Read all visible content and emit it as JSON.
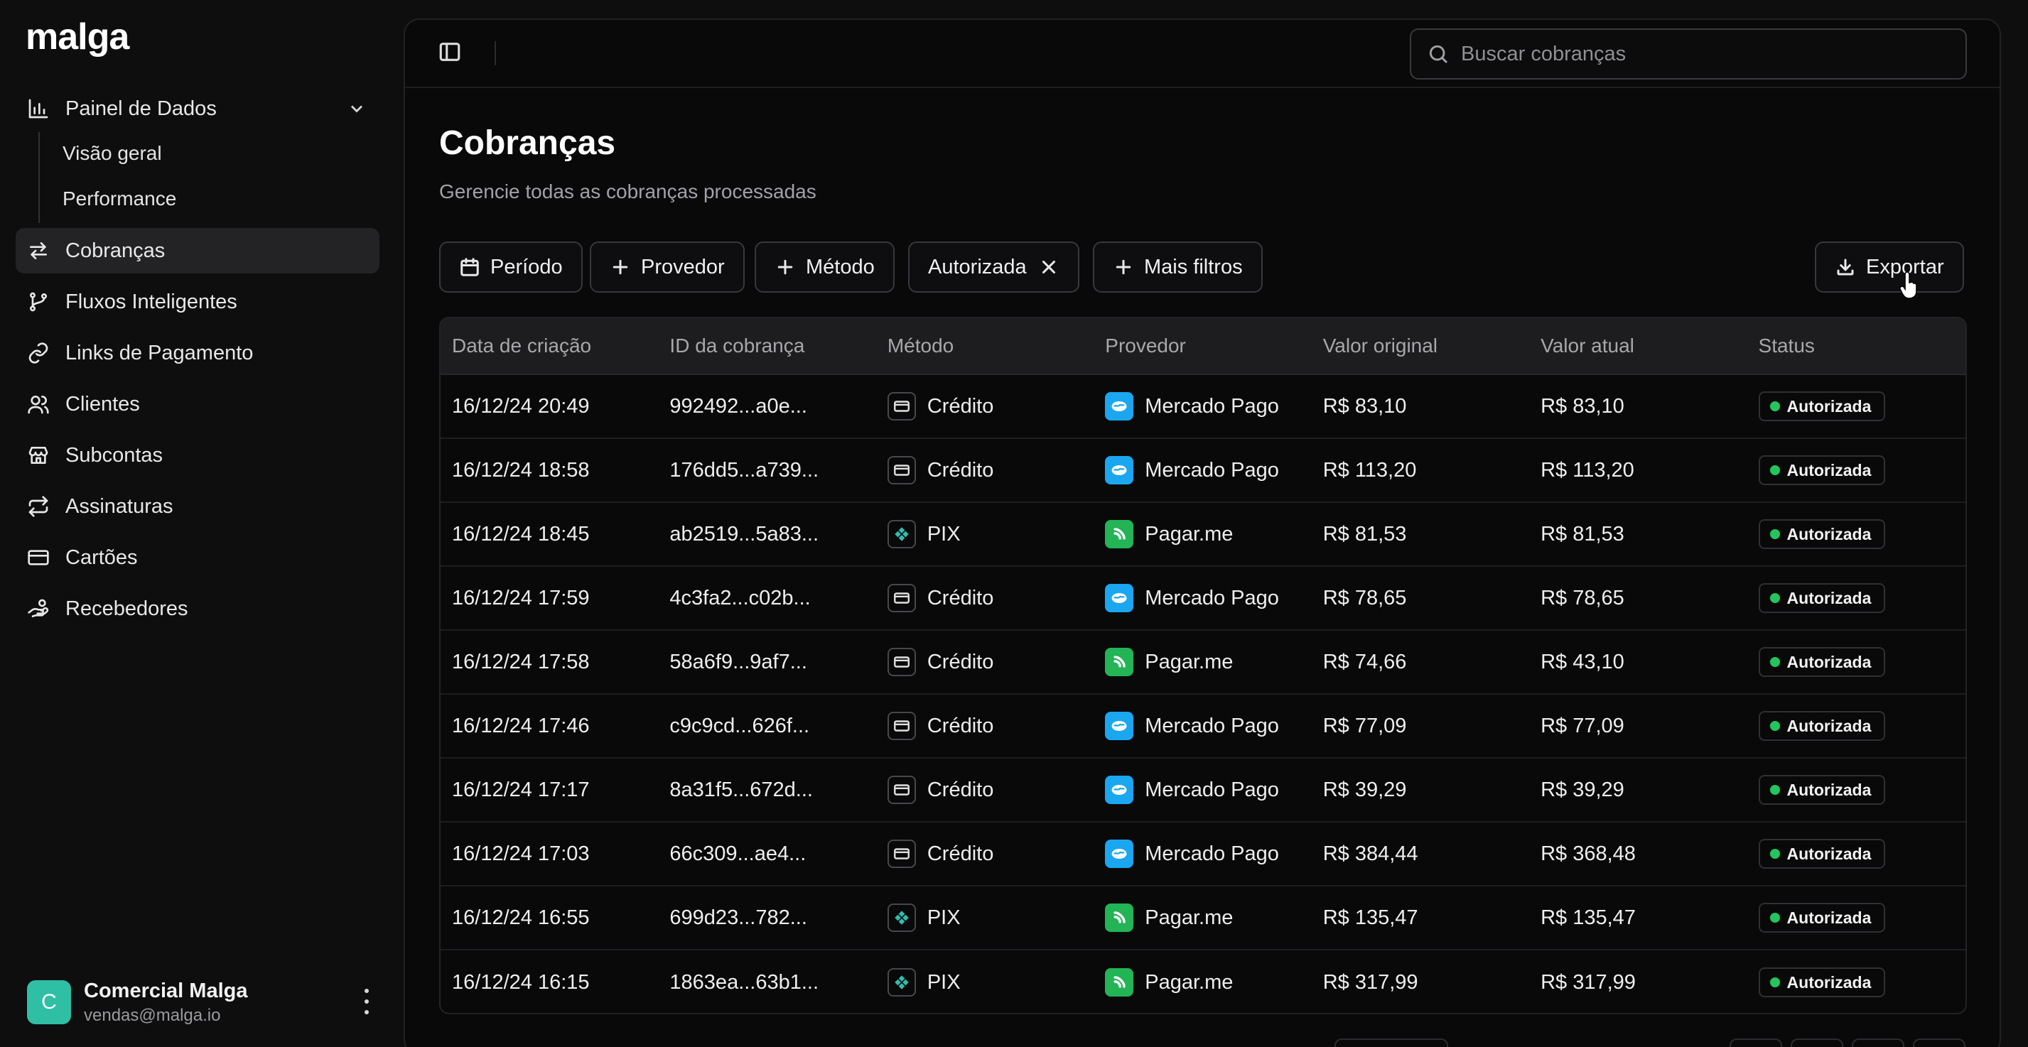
{
  "app": {
    "logo": "malga"
  },
  "sidebar": {
    "groups": [
      {
        "label": "Painel de Dados",
        "icon": "bar-chart-icon",
        "sub": [
          {
            "label": "Visão geral"
          },
          {
            "label": "Performance"
          }
        ]
      }
    ],
    "items": [
      {
        "label": "Cobranças",
        "icon": "arrows-exchange-icon",
        "active": true
      },
      {
        "label": "Fluxos Inteligentes",
        "icon": "git-branch-icon"
      },
      {
        "label": "Links de Pagamento",
        "icon": "link-icon"
      },
      {
        "label": "Clientes",
        "icon": "users-icon"
      },
      {
        "label": "Subcontas",
        "icon": "store-icon"
      },
      {
        "label": "Assinaturas",
        "icon": "repeat-icon"
      },
      {
        "label": "Cartões",
        "icon": "credit-card-icon"
      },
      {
        "label": "Recebedores",
        "icon": "hand-coins-icon"
      }
    ],
    "user": {
      "initial": "C",
      "name": "Comercial Malga",
      "email": "vendas@malga.io",
      "avatar_color": "#2ebfa5"
    }
  },
  "header": {
    "search_placeholder": "Buscar cobranças"
  },
  "page": {
    "title": "Cobranças",
    "subtitle": "Gerencie todas as cobranças processadas"
  },
  "filters": {
    "periodo": "Período",
    "provedor": "Provedor",
    "metodo": "Método",
    "active_filter": "Autorizada",
    "mais_filtros": "Mais filtros",
    "exportar": "Exportar"
  },
  "table": {
    "columns": [
      "Data de criação",
      "ID da cobrança",
      "Método",
      "Provedor",
      "Valor original",
      "Valor atual",
      "Status"
    ],
    "rows": [
      {
        "date": "16/12/24 20:49",
        "id": "992492...a0e...",
        "method": "Crédito",
        "provider": "Mercado Pago",
        "original": "R$ 83,10",
        "current": "R$ 83,10",
        "status": "Autorizada"
      },
      {
        "date": "16/12/24 18:58",
        "id": "176dd5...a739...",
        "method": "Crédito",
        "provider": "Mercado Pago",
        "original": "R$ 113,20",
        "current": "R$ 113,20",
        "status": "Autorizada"
      },
      {
        "date": "16/12/24 18:45",
        "id": "ab2519...5a83...",
        "method": "PIX",
        "provider": "Pagar.me",
        "original": "R$ 81,53",
        "current": "R$ 81,53",
        "status": "Autorizada"
      },
      {
        "date": "16/12/24 17:59",
        "id": "4c3fa2...c02b...",
        "method": "Crédito",
        "provider": "Mercado Pago",
        "original": "R$ 78,65",
        "current": "R$ 78,65",
        "status": "Autorizada"
      },
      {
        "date": "16/12/24 17:58",
        "id": "58a6f9...9af7...",
        "method": "Crédito",
        "provider": "Pagar.me",
        "original": "R$ 74,66",
        "current": "R$ 43,10",
        "status": "Autorizada"
      },
      {
        "date": "16/12/24 17:46",
        "id": "c9c9cd...626f...",
        "method": "Crédito",
        "provider": "Mercado Pago",
        "original": "R$ 77,09",
        "current": "R$ 77,09",
        "status": "Autorizada"
      },
      {
        "date": "16/12/24 17:17",
        "id": "8a31f5...672d...",
        "method": "Crédito",
        "provider": "Mercado Pago",
        "original": "R$ 39,29",
        "current": "R$ 39,29",
        "status": "Autorizada"
      },
      {
        "date": "16/12/24 17:03",
        "id": "66c309...ae4...",
        "method": "Crédito",
        "provider": "Mercado Pago",
        "original": "R$ 384,44",
        "current": "R$ 368,48",
        "status": "Autorizada"
      },
      {
        "date": "16/12/24 16:55",
        "id": "699d23...782...",
        "method": "PIX",
        "provider": "Pagar.me",
        "original": "R$ 135,47",
        "current": "R$ 135,47",
        "status": "Autorizada"
      },
      {
        "date": "16/12/24 16:15",
        "id": "1863ea...63b1...",
        "method": "PIX",
        "provider": "Pagar.me",
        "original": "R$ 317,99",
        "current": "R$ 317,99",
        "status": "Autorizada"
      }
    ]
  },
  "colors": {
    "status_ok": "#22c55e",
    "mercado_pago": "#1aa7f0",
    "pagarme": "#22b455",
    "pix": "#32bcad"
  }
}
